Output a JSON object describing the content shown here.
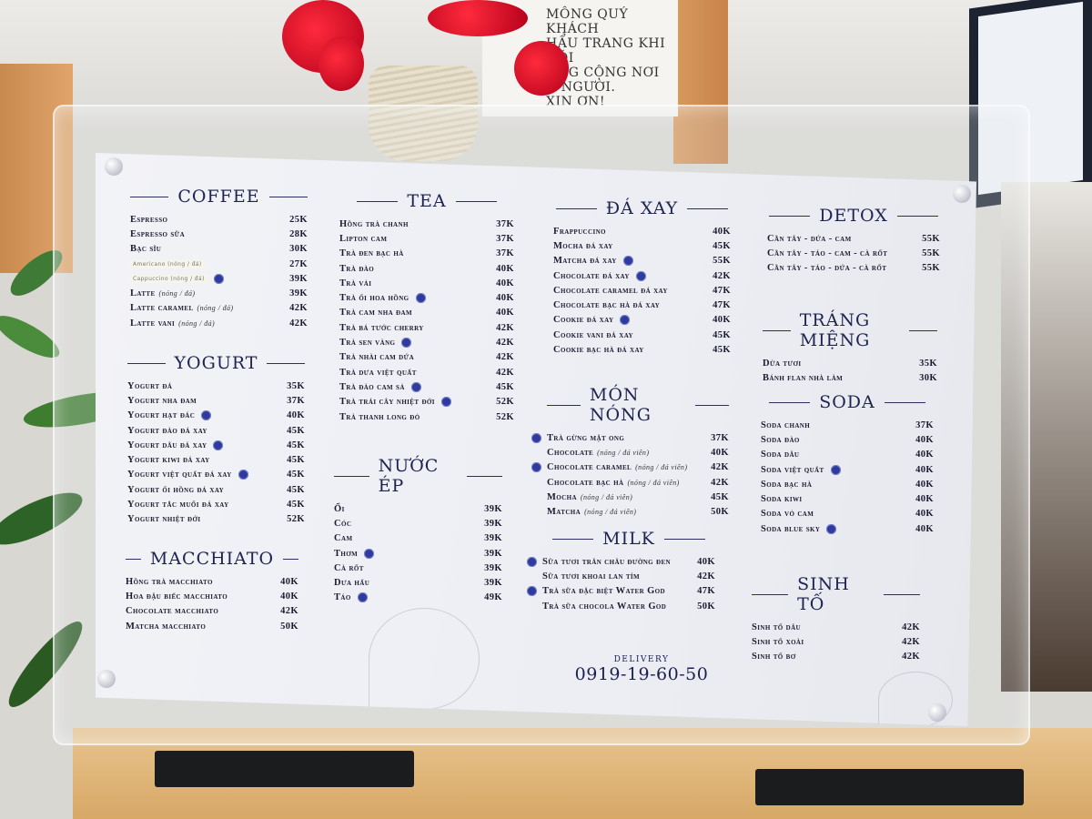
{
  "notice": {
    "lines": [
      "MÔNG QUÝ KHÁCH",
      "HẨU TRANG KHI NÓI",
      "ỘNG CỘNG NƠI",
      "G NGƯỜI.",
      "XIN  ƠN!"
    ]
  },
  "menu": {
    "sections": [
      {
        "id": "coffee",
        "title": "COFFEE",
        "items": [
          {
            "name": "Espresso",
            "price": "25K"
          },
          {
            "name": "Espresso sữa",
            "price": "28K"
          },
          {
            "name": "Bạc sĩu",
            "price": "30K"
          },
          {
            "name": "Americano (nóng / đá)",
            "price": "27K",
            "hand": true
          },
          {
            "name": "Cappuccino (nóng / đá)",
            "price": "39K",
            "hand": true,
            "badge": true
          },
          {
            "name": "Latte",
            "note": "(nóng / đá)",
            "price": "39K"
          },
          {
            "name": "Latte caramel",
            "note": "(nóng / đá)",
            "price": "42K"
          },
          {
            "name": "Latte vani",
            "note": "(nóng / đá)",
            "price": "42K"
          }
        ]
      },
      {
        "id": "yogurt",
        "title": "YOGURT",
        "items": [
          {
            "name": "Yogurt đá",
            "price": "35K"
          },
          {
            "name": "Yogurt nha đam",
            "price": "37K"
          },
          {
            "name": "Yogurt hạt đác",
            "price": "40K",
            "badge": true
          },
          {
            "name": "Yogurt đào đá xay",
            "price": "45K"
          },
          {
            "name": "Yogurt dâu đá xay",
            "price": "45K",
            "badge": true
          },
          {
            "name": "Yogurt kiwi đá xay",
            "price": "45K"
          },
          {
            "name": "Yogurt việt quất đá xay",
            "price": "45K",
            "badge": true
          },
          {
            "name": "Yogurt ổi hồng đá xay",
            "price": "45K"
          },
          {
            "name": "Yogurt tắc muối đá xay",
            "price": "45K"
          },
          {
            "name": "Yogurt nhiệt đới",
            "price": "52K"
          }
        ]
      },
      {
        "id": "macchiato",
        "title": "MACCHIATO",
        "items": [
          {
            "name": "Hồng trà macchiato",
            "price": "40K"
          },
          {
            "name": "Hoa đậu biếc macchiato",
            "price": "40K"
          },
          {
            "name": "Chocolate macchiato",
            "price": "42K"
          },
          {
            "name": "Matcha macchiato",
            "price": "50K"
          }
        ]
      },
      {
        "id": "tea",
        "title": "TEA",
        "items": [
          {
            "name": "Hồng trà chanh",
            "price": "37K"
          },
          {
            "name": "Lipton cam",
            "price": "37K"
          },
          {
            "name": "Trà đen bạc hà",
            "price": "37K"
          },
          {
            "name": "Trà đào",
            "price": "40K"
          },
          {
            "name": "Trà vải",
            "price": "40K"
          },
          {
            "name": "Trà ổi hoa hồng",
            "price": "40K",
            "badge": true
          },
          {
            "name": "Trà cam nha đam",
            "price": "40K"
          },
          {
            "name": "Trà bá tước cherry",
            "price": "42K"
          },
          {
            "name": "Trà sen vàng",
            "price": "42K",
            "badge": true
          },
          {
            "name": "Trà nhài cam dứa",
            "price": "42K"
          },
          {
            "name": "Trà dưa việt quất",
            "price": "42K"
          },
          {
            "name": "Trà đào cam sả",
            "price": "45K",
            "badge": true
          },
          {
            "name": "Trà trái cây nhiệt đới",
            "price": "52K",
            "badge": true
          },
          {
            "name": "Trà thanh long đỏ",
            "price": "52K"
          }
        ]
      },
      {
        "id": "nuocep",
        "title": "NƯỚC ÉP",
        "items": [
          {
            "name": "Ổi",
            "price": "39K"
          },
          {
            "name": "Cóc",
            "price": "39K"
          },
          {
            "name": "Cam",
            "price": "39K"
          },
          {
            "name": "Thơm",
            "price": "39K",
            "badge": true
          },
          {
            "name": "Cà rốt",
            "price": "39K"
          },
          {
            "name": "Dưa hấu",
            "price": "39K"
          },
          {
            "name": "Táo",
            "price": "49K",
            "badge": true
          }
        ]
      },
      {
        "id": "daxay",
        "title": "ĐÁ XAY",
        "items": [
          {
            "name": "Frappuccino",
            "price": "40K"
          },
          {
            "name": "Mocha đá xay",
            "price": "45K"
          },
          {
            "name": "Matcha đá xay",
            "price": "55K",
            "badge": true
          },
          {
            "name": "Chocolate đá xay",
            "price": "42K",
            "badge": true
          },
          {
            "name": "Chocolate caramel đá xay",
            "price": "47K"
          },
          {
            "name": "Chocolate bạc hà đá xay",
            "price": "47K"
          },
          {
            "name": "Cookie đá xay",
            "price": "40K",
            "badge": true
          },
          {
            "name": "Cookie vani đá xay",
            "price": "45K"
          },
          {
            "name": "Cookie bạc hà đá xay",
            "price": "45K"
          }
        ]
      },
      {
        "id": "monnong",
        "title": "MÓN NÓNG",
        "items": [
          {
            "name": "Trà gừng mật ong",
            "price": "37K",
            "lead": true
          },
          {
            "name": "Chocolate",
            "note": "(nóng / đá viên)",
            "price": "40K"
          },
          {
            "name": "Chocolate caramel",
            "note": "(nóng / đá viên)",
            "price": "42K",
            "lead": true
          },
          {
            "name": "Chocolate bạc hà",
            "note": "(nóng / đá viên)",
            "price": "42K"
          },
          {
            "name": "Mocha",
            "note": "(nóng / đá viên)",
            "price": "45K"
          },
          {
            "name": "Matcha",
            "note": "(nóng / đá viên)",
            "price": "50K"
          }
        ]
      },
      {
        "id": "milk",
        "title": "MILK",
        "items": [
          {
            "name": "Sữa tươi trân châu đường đen",
            "price": "40K",
            "lead": true
          },
          {
            "name": "Sữa tươi khoai lan tím",
            "price": "42K"
          },
          {
            "name": "Trà sữa đặc biệt Water God",
            "price": "47K",
            "lead": true
          },
          {
            "name": "Trà sữa chocola Water God",
            "price": "50K"
          }
        ]
      },
      {
        "id": "detox",
        "title": "DETOX",
        "items": [
          {
            "name": "Cần tây - dứa - cam",
            "price": "55K"
          },
          {
            "name": "Cần tây - táo - cam - cà rốt",
            "price": "55K"
          },
          {
            "name": "Cần tây - táo - dứa - cà rốt",
            "price": "55K"
          }
        ]
      },
      {
        "id": "trangmieng",
        "title": "TRÁNG MIỆNG",
        "items": [
          {
            "name": "Dừa tươi",
            "price": "35K"
          },
          {
            "name": "Bánh flan nhà làm",
            "price": "30K"
          }
        ]
      },
      {
        "id": "soda",
        "title": "SODA",
        "items": [
          {
            "name": "Soda chanh",
            "price": "37K"
          },
          {
            "name": "Soda đào",
            "price": "40K"
          },
          {
            "name": "Soda dâu",
            "price": "40K"
          },
          {
            "name": "Soda việt quất",
            "price": "40K",
            "badge": true
          },
          {
            "name": "Soda bạc hà",
            "price": "40K"
          },
          {
            "name": "Soda kiwi",
            "price": "40K"
          },
          {
            "name": "Soda vỏ cam",
            "price": "40K"
          },
          {
            "name": "Soda blue sky",
            "price": "40K",
            "badge": true
          }
        ]
      },
      {
        "id": "sinhto",
        "title": "SINH TỐ",
        "items": [
          {
            "name": "Sinh tố dâu",
            "price": "42K"
          },
          {
            "name": "Sinh tố xoài",
            "price": "42K"
          },
          {
            "name": "Sinh tố bơ",
            "price": "42K"
          }
        ]
      }
    ],
    "delivery": {
      "label": "DELIVERY",
      "phone": "0919-19-60-50"
    }
  },
  "colors": {
    "ink": "#1a1f4e",
    "badge": "#2e3a9e",
    "paper": "#eef0f5"
  }
}
